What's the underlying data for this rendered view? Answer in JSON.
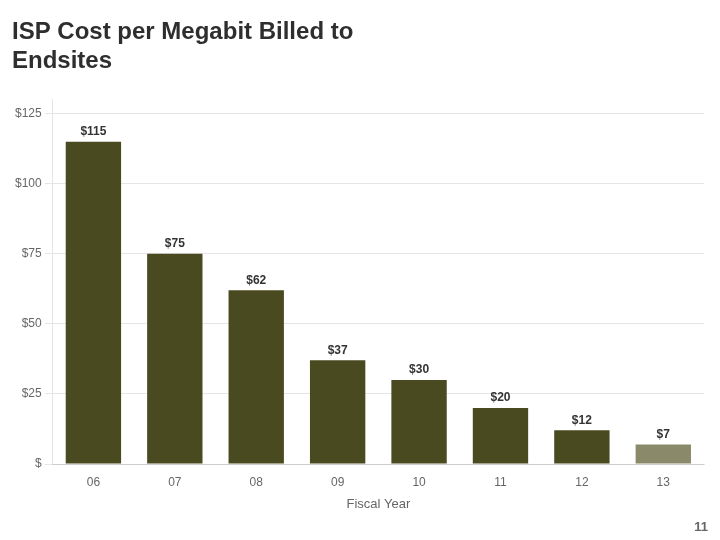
{
  "chart_data": {
    "type": "bar",
    "title": [
      "ISP Cost per Megabit Billed to",
      "Endsites"
    ],
    "xlabel": "Fiscal Year",
    "categories": [
      "06",
      "07",
      "08",
      "09",
      "10",
      "11",
      "12",
      "13"
    ],
    "values": [
      115,
      75,
      62,
      37,
      30,
      20,
      12,
      7
    ],
    "value_labels": [
      "$115",
      "$75",
      "$62",
      "$37",
      "$30",
      "$20",
      "$12",
      "$7"
    ],
    "data_labels": true,
    "colors": [
      "#4a4a20",
      "#4a4a20",
      "#4a4a20",
      "#4a4a20",
      "#4a4a20",
      "#4a4a20",
      "#4a4a20",
      "#8a8a6a"
    ],
    "ylim": [
      0,
      130
    ],
    "yticks": [
      {
        "value": 0,
        "label": "$"
      },
      {
        "value": 25,
        "label": "$25"
      },
      {
        "value": 50,
        "label": "$50"
      },
      {
        "value": 75,
        "label": "$75"
      },
      {
        "value": 100,
        "label": "$100"
      },
      {
        "value": 125,
        "label": "$125"
      }
    ],
    "grid": true,
    "annotations": [
      "11"
    ]
  }
}
